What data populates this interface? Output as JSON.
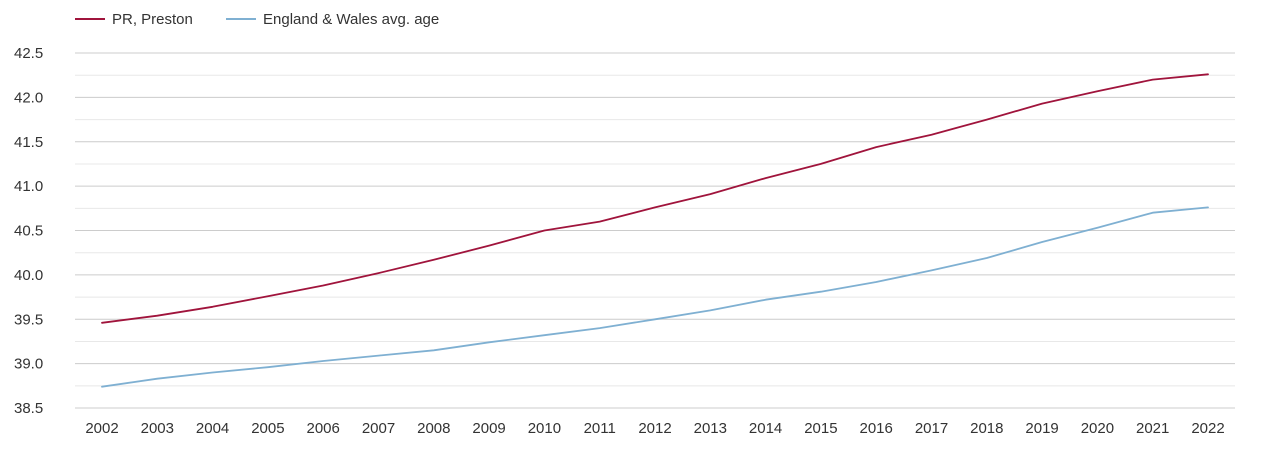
{
  "chart_data": {
    "type": "line",
    "x": [
      "2002",
      "2003",
      "2004",
      "2005",
      "2006",
      "2007",
      "2008",
      "2009",
      "2010",
      "2011",
      "2012",
      "2013",
      "2014",
      "2015",
      "2016",
      "2017",
      "2018",
      "2019",
      "2020",
      "2021",
      "2022"
    ],
    "series": [
      {
        "name": "PR, Preston",
        "color": "#a0143c",
        "values": [
          39.46,
          39.54,
          39.64,
          39.76,
          39.88,
          40.02,
          40.17,
          40.33,
          40.5,
          40.6,
          40.76,
          40.91,
          41.09,
          41.25,
          41.44,
          41.58,
          41.75,
          41.93,
          42.07,
          42.2,
          42.26
        ]
      },
      {
        "name": "England & Wales avg. age",
        "color": "#7fb0d2",
        "values": [
          38.74,
          38.83,
          38.9,
          38.96,
          39.03,
          39.09,
          39.15,
          39.24,
          39.32,
          39.4,
          39.5,
          39.6,
          39.72,
          39.81,
          39.92,
          40.05,
          40.19,
          40.37,
          40.53,
          40.7,
          40.76
        ]
      }
    ],
    "y_ticks": [
      "38.5",
      "39.0",
      "39.5",
      "40.0",
      "40.5",
      "41.0",
      "41.5",
      "42.0",
      "42.5"
    ],
    "ylim": [
      38.5,
      42.5
    ],
    "grid": true,
    "legend_position": "top-left",
    "title": "",
    "xlabel": "",
    "ylabel": ""
  }
}
